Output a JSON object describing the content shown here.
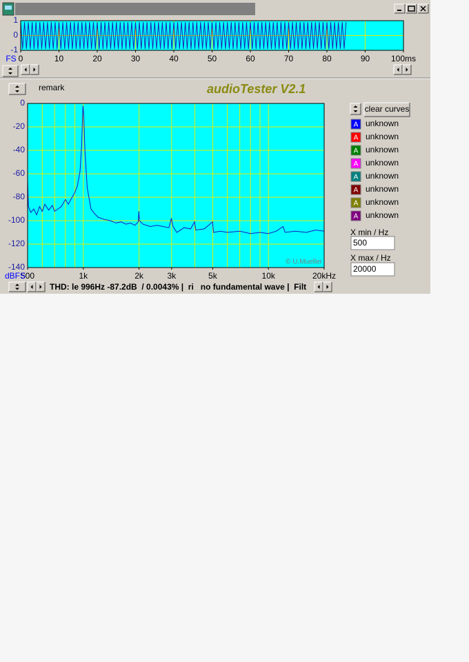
{
  "chart_data": [
    {
      "type": "line",
      "ylabel": "FS",
      "xlim": [
        0,
        100
      ],
      "ylim": [
        -1,
        1
      ],
      "xticks": [
        0,
        10,
        20,
        30,
        40,
        50,
        60,
        70,
        80,
        90,
        {
          "value": 100,
          "label": "100ms"
        }
      ],
      "yticks": [
        1,
        0,
        -1
      ],
      "grid": true,
      "background": "#00ffff",
      "grid_color": "#e8e800",
      "series": [
        {
          "color": "#2020b0",
          "x": [
            0,
            0.5,
            1,
            1.5,
            2,
            2.5,
            3,
            3.5,
            4,
            4.5,
            5,
            5.5,
            6,
            6.5,
            7,
            7.5,
            8,
            8.5,
            9,
            9.5,
            10,
            10.5,
            11,
            11.5,
            12,
            12.5,
            13,
            13.5,
            14,
            14.5,
            15,
            15.5,
            16,
            16.5,
            17,
            17.5,
            18,
            18.5,
            19,
            19.5,
            20,
            20.5,
            21,
            21.5,
            22,
            22.5,
            23,
            23.5,
            24,
            24.5,
            25,
            25.5,
            26,
            26.5,
            27,
            27.5,
            28,
            28.5,
            29,
            29.5,
            30,
            30.5,
            31,
            31.5,
            32,
            32.5,
            33,
            33.5,
            34,
            34.5,
            35,
            35.5,
            36,
            36.5,
            37,
            37.5,
            38,
            38.5,
            39,
            39.5,
            40,
            40.5,
            41,
            41.5,
            42,
            42.5,
            43,
            43.5,
            44,
            44.5,
            45,
            45.5,
            46,
            46.5,
            47,
            47.5,
            48,
            48.5,
            49,
            49.5,
            50,
            50.5,
            51,
            51.5,
            52,
            52.5,
            53,
            53.5,
            54,
            54.5,
            55,
            55.5,
            56,
            56.5,
            57,
            57.5,
            58,
            58.5,
            59,
            59.5,
            60,
            60.5,
            61,
            61.5,
            62,
            62.5,
            63,
            63.5,
            64,
            64.5,
            65,
            65.5,
            66,
            66.5,
            67,
            67.5,
            68,
            68.5,
            69,
            69.5,
            70,
            70.5,
            71,
            71.5,
            72,
            72.5,
            73,
            73.5,
            74,
            74.5,
            75,
            75.5,
            76,
            76.5,
            77,
            77.5,
            78,
            78.5,
            79,
            79.5,
            80,
            80.5,
            81,
            81.5,
            82,
            82.5,
            83,
            83.5,
            84,
            84.5,
            85
          ],
          "values": [
            0.9,
            -0.9,
            0.9,
            -0.9,
            0.9,
            -0.9,
            0.9,
            -0.9,
            0.9,
            -0.9,
            0.9,
            -0.9,
            0.9,
            -0.9,
            0.9,
            -0.9,
            0.9,
            -0.9,
            0.9,
            -0.9,
            0.9,
            -0.9,
            0.9,
            -0.9,
            0.9,
            -0.9,
            0.9,
            -0.9,
            0.9,
            -0.9,
            0.9,
            -0.9,
            0.9,
            -0.9,
            0.9,
            -0.9,
            0.9,
            -0.9,
            0.9,
            -0.9,
            0.9,
            -0.9,
            0.9,
            -0.9,
            0.9,
            -0.9,
            0.9,
            -0.9,
            0.9,
            -0.9,
            0.9,
            -0.9,
            0.9,
            -0.9,
            0.9,
            -0.9,
            0.9,
            -0.9,
            0.9,
            -0.9,
            0.9,
            -0.9,
            0.9,
            -0.9,
            0.9,
            -0.9,
            0.9,
            -0.9,
            0.9,
            -0.9,
            0.9,
            -0.9,
            0.9,
            -0.9,
            0.9,
            -0.9,
            0.9,
            -0.9,
            0.9,
            -0.9,
            0.9,
            -0.9,
            0.9,
            -0.9,
            0.9,
            -0.9,
            0.9,
            -0.9,
            0.9,
            -0.9,
            0.9,
            -0.9,
            0.9,
            -0.9,
            0.9,
            -0.9,
            0.9,
            -0.9,
            0.9,
            -0.9,
            0.9,
            -0.9,
            0.9,
            -0.9,
            0.9,
            -0.9,
            0.9,
            -0.9,
            0.9,
            -0.9,
            0.9,
            -0.9,
            0.9,
            -0.9,
            0.9,
            -0.9,
            0.9,
            -0.9,
            0.9,
            -0.9,
            0.9,
            -0.9,
            0.9,
            -0.9,
            0.9,
            -0.9,
            0.9,
            -0.9,
            0.9,
            -0.9,
            0.9,
            -0.9,
            0.9,
            -0.9,
            0.9,
            -0.9,
            0.9,
            -0.9,
            0.9,
            -0.9,
            0.9,
            -0.9,
            0.9,
            -0.9,
            0.9,
            -0.9,
            0.9,
            -0.9,
            0.9,
            -0.9,
            0.9,
            -0.9,
            0.9,
            -0.9,
            0.9,
            -0.9,
            0.9,
            -0.9,
            0.9,
            -0.9,
            0.9,
            -0.9,
            0.9,
            -0.9,
            0.9,
            -0.9,
            0.9,
            -0.9,
            0.9,
            -0.9,
            0.9
          ]
        }
      ]
    },
    {
      "type": "line",
      "ylabel": "dBFS",
      "xscale": "log",
      "xlim": [
        500,
        20000
      ],
      "ylim": [
        -140,
        0
      ],
      "xticks": [
        500,
        {
          "value": 1000,
          "label": "1k"
        },
        {
          "value": 2000,
          "label": "2k"
        },
        {
          "value": 3000,
          "label": "3k"
        },
        {
          "value": 5000,
          "label": "5k"
        },
        {
          "value": 10000,
          "label": "10k"
        },
        {
          "value": 20000,
          "label": "20kHz"
        }
      ],
      "yticks": [
        0,
        -20,
        -40,
        -60,
        -80,
        -100,
        -120,
        -140
      ],
      "xgrid": [
        600,
        700,
        800,
        900,
        1000,
        2000,
        3000,
        4000,
        5000,
        6000,
        7000,
        8000,
        9000,
        10000
      ],
      "grid": true,
      "background": "#00ffff",
      "grid_color": "#e8e800",
      "credit": "© U.Mueller",
      "series": [
        {
          "color": "#1818c0",
          "x": [
            500,
            505,
            520,
            540,
            560,
            580,
            600,
            620,
            650,
            680,
            700,
            730,
            760,
            800,
            830,
            870,
            900,
            930,
            960,
            980,
            990,
            996,
            1005,
            1020,
            1050,
            1100,
            1150,
            1200,
            1300,
            1400,
            1500,
            1600,
            1700,
            1800,
            1900,
            1980,
            1995,
            2010,
            2100,
            2300,
            2500,
            2700,
            2900,
            2990,
            3050,
            3200,
            3500,
            3800,
            3990,
            4050,
            4500,
            4990,
            5050,
            5500,
            6000,
            7000,
            8000,
            9000,
            10000,
            11000,
            12000,
            12300,
            14000,
            16000,
            18000,
            20000
          ],
          "values": [
            -65,
            -88,
            -93,
            -90,
            -95,
            -88,
            -92,
            -86,
            -91,
            -87,
            -92,
            -90,
            -88,
            -82,
            -86,
            -80,
            -76,
            -70,
            -58,
            -35,
            -12,
            -2,
            -10,
            -40,
            -72,
            -90,
            -94,
            -97,
            -99,
            -100,
            -102,
            -101,
            -103,
            -102,
            -104,
            -101,
            -92,
            -100,
            -103,
            -105,
            -104,
            -105,
            -106,
            -98,
            -105,
            -110,
            -106,
            -107,
            -101,
            -108,
            -107,
            -101,
            -110,
            -109,
            -110,
            -109,
            -111,
            -110,
            -111,
            -109,
            -105,
            -110,
            -109,
            -110,
            -108,
            -109
          ]
        }
      ]
    }
  ],
  "window": {
    "remark": "remark",
    "app_title": "audioTester V2.1",
    "clear_button": "clear curves",
    "curves": [
      {
        "marker": "A",
        "label": "unknown",
        "color": "#0000ff"
      },
      {
        "marker": "A",
        "label": "unknown",
        "color": "#ff0000"
      },
      {
        "marker": "A",
        "label": "unknown",
        "color": "#008000"
      },
      {
        "marker": "A",
        "label": "unknown",
        "color": "#ff00ff"
      },
      {
        "marker": "A",
        "label": "unknown",
        "color": "#008080"
      },
      {
        "marker": "A",
        "label": "unknown",
        "color": "#800000"
      },
      {
        "marker": "A",
        "label": "unknown",
        "color": "#808000"
      },
      {
        "marker": "A",
        "label": "unknown",
        "color": "#800080"
      }
    ],
    "xmin_label": "X min / Hz",
    "xmin_value": 500,
    "xmax_label": "X max / Hz",
    "xmax_value": 20000,
    "status": "THD: le 996Hz -87.2dB  / 0.0043% |  ri   no fundamental wave |  Filt"
  }
}
